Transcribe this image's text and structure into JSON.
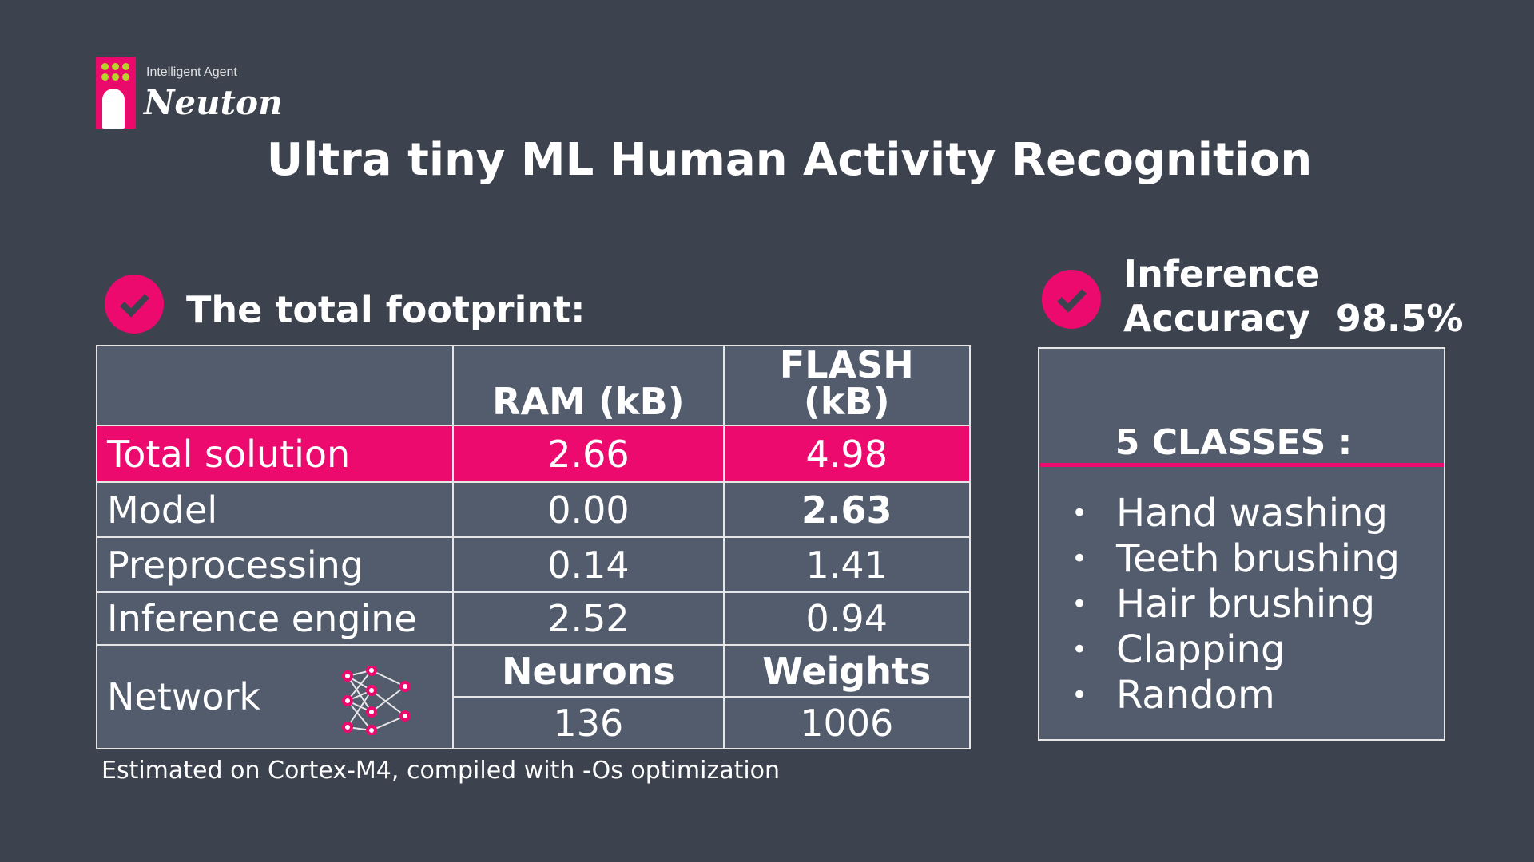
{
  "logo": {
    "tagline": "Intelligent Agent",
    "name": "Neuton"
  },
  "title": "Ultra tiny ML Human Activity Recognition",
  "footprint": {
    "heading": "The total footprint:",
    "columns": [
      "",
      "RAM (kB)",
      "FLASH (kB)"
    ],
    "rows": [
      {
        "label": "Total solution",
        "ram": "2.66",
        "flash": "4.98",
        "highlight": true
      },
      {
        "label": "Model",
        "ram": "0.00",
        "flash": "2.63"
      },
      {
        "label": "Preprocessing",
        "ram": "0.14",
        "flash": "1.41"
      },
      {
        "label": "Inference engine",
        "ram": "2.52",
        "flash": "0.94"
      }
    ],
    "network": {
      "label": "Network",
      "neurons_label": "Neurons",
      "weights_label": "Weights",
      "neurons": "136",
      "weights": "1006",
      "icon": "neural-network-icon"
    },
    "footnote": "Estimated on Cortex-M4, compiled with -Os optimization"
  },
  "accuracy": {
    "line1": "Inference",
    "line2": "Accuracy",
    "value": "98.5%"
  },
  "classes": {
    "title": "5 CLASSES :",
    "items": [
      "Hand washing",
      "Teeth brushing",
      "Hair brushing",
      "Clapping",
      "Random"
    ]
  },
  "colors": {
    "accent": "#ec0a6e",
    "background": "#3c434f",
    "cell": "#535c6d"
  }
}
